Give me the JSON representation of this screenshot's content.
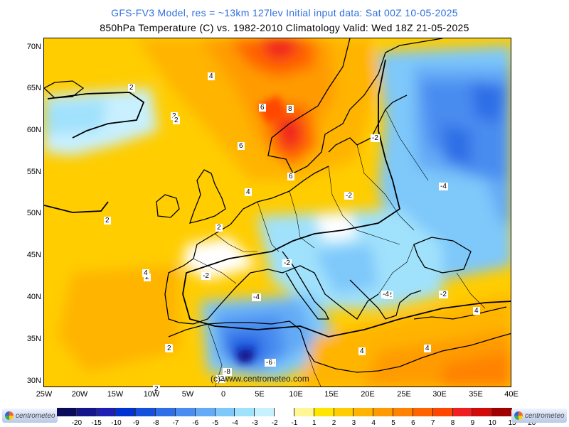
{
  "header": {
    "line1": "GFS-FV3 Model, res = ~13km 127lev   Initial input data: Sat 00Z 10-05-2025",
    "line2": "850hPa Temperature (C) vs. 1982-2010 Climatology  Valid: Wed 18Z 21-05-2025"
  },
  "map": {
    "lat_labels": [
      "70N",
      "65N",
      "60N",
      "55N",
      "50N",
      "45N",
      "40N",
      "35N",
      "30N"
    ],
    "lon_labels": [
      "25W",
      "20W",
      "15W",
      "10W",
      "5W",
      "0",
      "5E",
      "10E",
      "15E",
      "20E",
      "25E",
      "30E",
      "35E",
      "40E"
    ],
    "contour_labels": [
      "2",
      "2",
      "4",
      "6",
      "8",
      "6",
      "6",
      "4",
      "2",
      "2",
      "2",
      "2",
      "2",
      "4",
      "2",
      "2",
      "4",
      "4",
      "2",
      "-2",
      "-2",
      "-4",
      "-6",
      "-2",
      "-4",
      "-2",
      "-2",
      "-4",
      "-2",
      "4",
      "4",
      "4",
      "2",
      "-6",
      "-8",
      "-2"
    ],
    "credit": "(c) www.centrometeo.com"
  },
  "legend": {
    "labels": [
      "-20",
      "-15",
      "-10",
      "-9",
      "-8",
      "-7",
      "-6",
      "-5",
      "-4",
      "-3",
      "-2",
      "-1",
      "1",
      "2",
      "3",
      "4",
      "5",
      "6",
      "7",
      "8",
      "9",
      "10",
      "15",
      "20"
    ],
    "colors": [
      "#0a0a5a",
      "#14148c",
      "#1e1eb4",
      "#0032d2",
      "#1450dc",
      "#2e6ee6",
      "#4a8cf0",
      "#64aaf6",
      "#7ec8fa",
      "#a0e1fc",
      "#c8f0ff",
      "#ffffff",
      "#fff696",
      "#ffe600",
      "#ffcd00",
      "#ffb400",
      "#ff9b00",
      "#ff8200",
      "#ff6400",
      "#ff4600",
      "#f01e1e",
      "#d20a0a",
      "#a00000"
    ],
    "logo_text": "centrometeo"
  }
}
